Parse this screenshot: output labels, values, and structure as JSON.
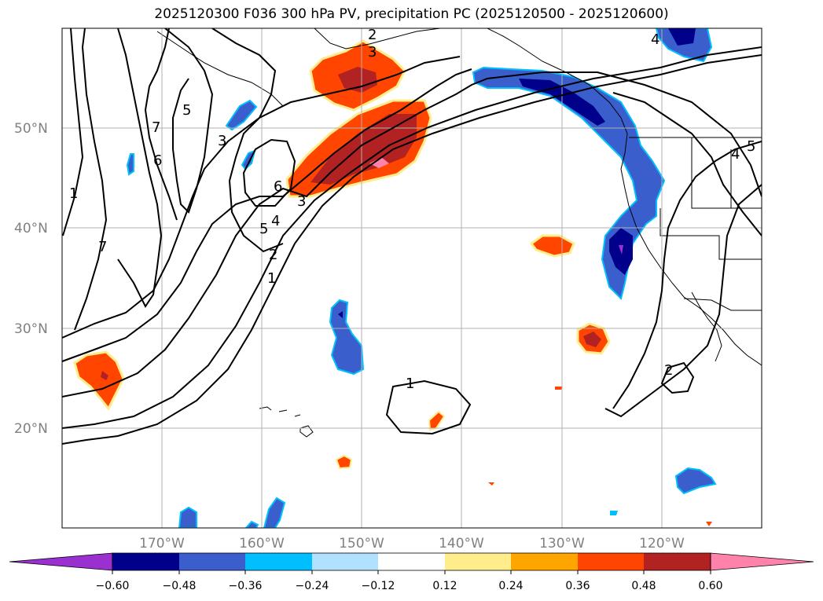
{
  "title": "2025120300 F036 300 hPa PV, precipitation PC (2025120500 - 2025120600)",
  "lat_labels": [
    "50°N",
    "40°N",
    "30°N",
    "20°N"
  ],
  "lon_labels": [
    "170°W",
    "160°W",
    "150°W",
    "140°W",
    "130°W",
    "120°W"
  ],
  "colorbar": {
    "ticks": [
      "−0.60",
      "−0.48",
      "−0.36",
      "−0.24",
      "−0.12",
      "0.12",
      "0.24",
      "0.36",
      "0.48",
      "0.60"
    ],
    "colors": [
      "#9b30d0",
      "#00008b",
      "#3a5fcd",
      "#00bfff",
      "#b0e2ff",
      "#ffffff",
      "#ffec8b",
      "#ffa500",
      "#ff4500",
      "#b22222",
      "#ff82ab"
    ]
  },
  "pv_contour_labels": [
    "1",
    "2",
    "3",
    "4",
    "5",
    "6",
    "7"
  ],
  "precip_colors": {
    "neg_dark": "#00008b",
    "neg_mid": "#3a5fcd",
    "neg_light": "#00bfff",
    "pos_orange": "#ff4500",
    "pos_red": "#b22222",
    "pos_pink": "#ff82ab",
    "pos_yellow": "#ffec8b"
  }
}
